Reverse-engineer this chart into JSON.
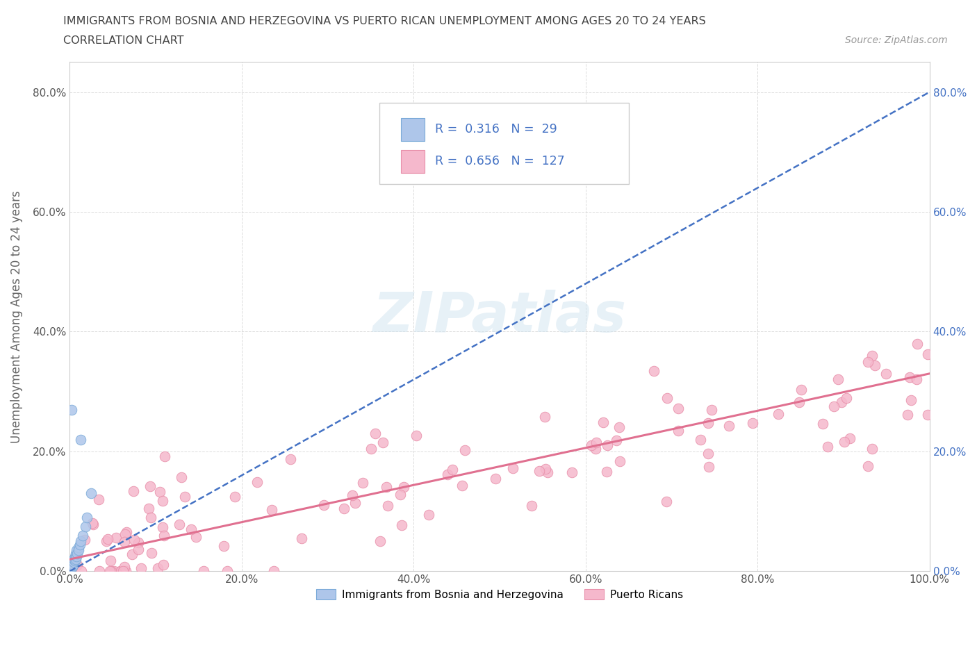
{
  "title_line1": "IMMIGRANTS FROM BOSNIA AND HERZEGOVINA VS PUERTO RICAN UNEMPLOYMENT AMONG AGES 20 TO 24 YEARS",
  "title_line2": "CORRELATION CHART",
  "source_text": "Source: ZipAtlas.com",
  "ylabel": "Unemployment Among Ages 20 to 24 years",
  "watermark": "ZIPatlas",
  "xlim": [
    0.0,
    1.0
  ],
  "ylim": [
    0.0,
    0.85
  ],
  "xticks": [
    0.0,
    0.2,
    0.4,
    0.6,
    0.8,
    1.0
  ],
  "xtick_labels": [
    "0.0%",
    "20.0%",
    "40.0%",
    "60.0%",
    "80.0%",
    "100.0%"
  ],
  "yticks": [
    0.0,
    0.2,
    0.4,
    0.6,
    0.8
  ],
  "ytick_labels": [
    "0.0%",
    "20.0%",
    "40.0%",
    "60.0%",
    "80.0%"
  ],
  "bosnia_color": "#aec6ea",
  "bosnia_edge": "#7aaad8",
  "puerto_rico_color": "#f5b8cc",
  "puerto_rico_edge": "#e890aa",
  "bosnia_R": 0.316,
  "bosnia_N": 29,
  "puerto_rico_R": 0.656,
  "puerto_rico_N": 127,
  "legend_text_color": "#4472c4",
  "trendline_bosnia_color": "#4472c4",
  "trendline_pr_color": "#e07090",
  "grid_color": "#cccccc",
  "background_color": "#ffffff",
  "right_axis_color": "#4472c4",
  "title_color": "#444444",
  "axis_label_color": "#666666",
  "tick_label_color": "#555555"
}
